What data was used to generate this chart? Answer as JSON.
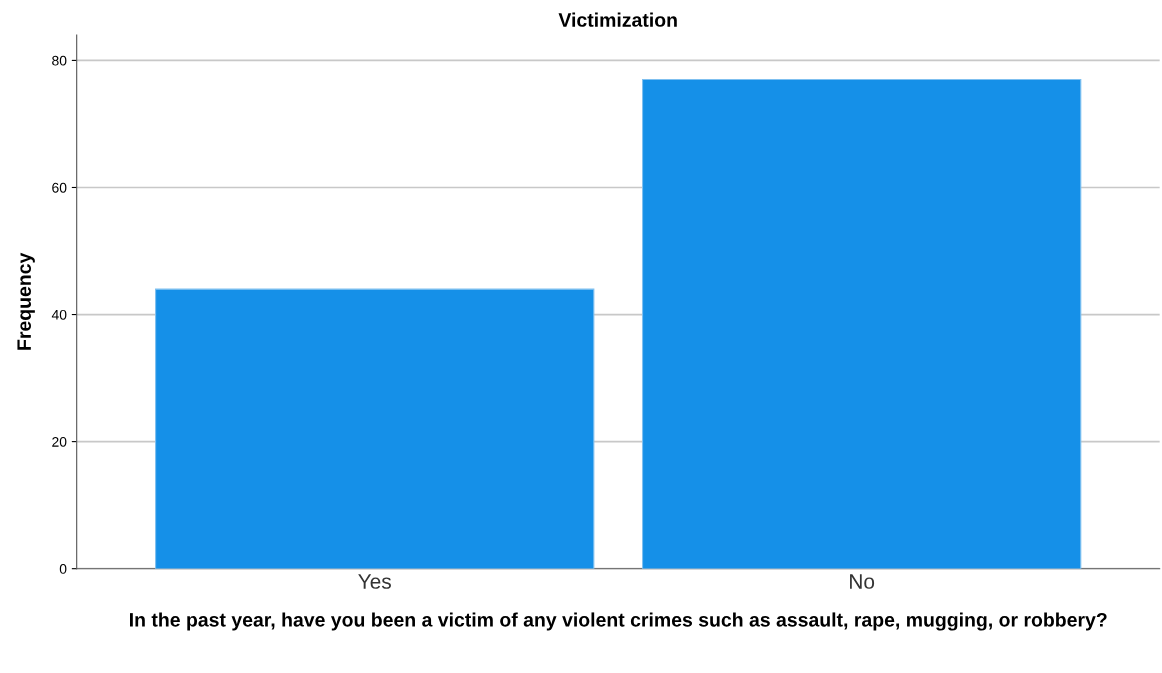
{
  "chart_data": {
    "type": "bar",
    "title": "Victimization",
    "xlabel": "In the past year, have you been a victim of any violent crimes such as assault, rape, mugging, or robbery?",
    "ylabel": "Frequency",
    "categories": [
      "Yes",
      "No"
    ],
    "values": [
      44,
      77
    ],
    "color": "#1590e8",
    "ylim": [
      0,
      84
    ],
    "yticks": [
      0,
      20,
      40,
      60,
      80
    ],
    "grid": "y",
    "legend": false
  }
}
